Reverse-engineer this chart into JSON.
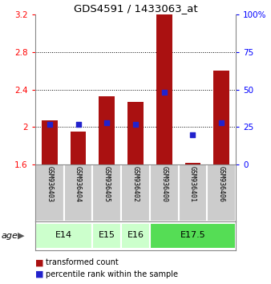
{
  "title": "GDS4591 / 1433063_at",
  "samples": [
    "GSM936403",
    "GSM936404",
    "GSM936405",
    "GSM936402",
    "GSM936400",
    "GSM936401",
    "GSM936406"
  ],
  "transformed_count": [
    2.07,
    1.95,
    2.33,
    2.27,
    3.2,
    1.62,
    2.6
  ],
  "percentile_rank": [
    27,
    27,
    28,
    27,
    48,
    20,
    28
  ],
  "ylim_left": [
    1.6,
    3.2
  ],
  "ylim_right": [
    0,
    100
  ],
  "yticks_left": [
    1.6,
    2.0,
    2.4,
    2.8,
    3.2
  ],
  "ytick_labels_left": [
    "1.6",
    "2",
    "2.4",
    "2.8",
    "3.2"
  ],
  "yticks_right": [
    0,
    25,
    50,
    75,
    100
  ],
  "ytick_labels_right": [
    "0",
    "25",
    "50",
    "75",
    "100%"
  ],
  "bar_color": "#aa1111",
  "dot_color": "#2222cc",
  "bar_width": 0.55,
  "age_groups": [
    {
      "label": "E14",
      "start": 0,
      "end": 1,
      "color": "#ccffcc"
    },
    {
      "label": "E15",
      "start": 2,
      "end": 2,
      "color": "#ccffcc"
    },
    {
      "label": "E16",
      "start": 3,
      "end": 3,
      "color": "#ccffcc"
    },
    {
      "label": "E17.5",
      "start": 4,
      "end": 6,
      "color": "#55dd55"
    }
  ],
  "legend_red_label": "transformed count",
  "legend_blue_label": "percentile rank within the sample",
  "bg_color": "#cccccc",
  "plot_bg": "#ffffff",
  "cell_border": "#888888"
}
